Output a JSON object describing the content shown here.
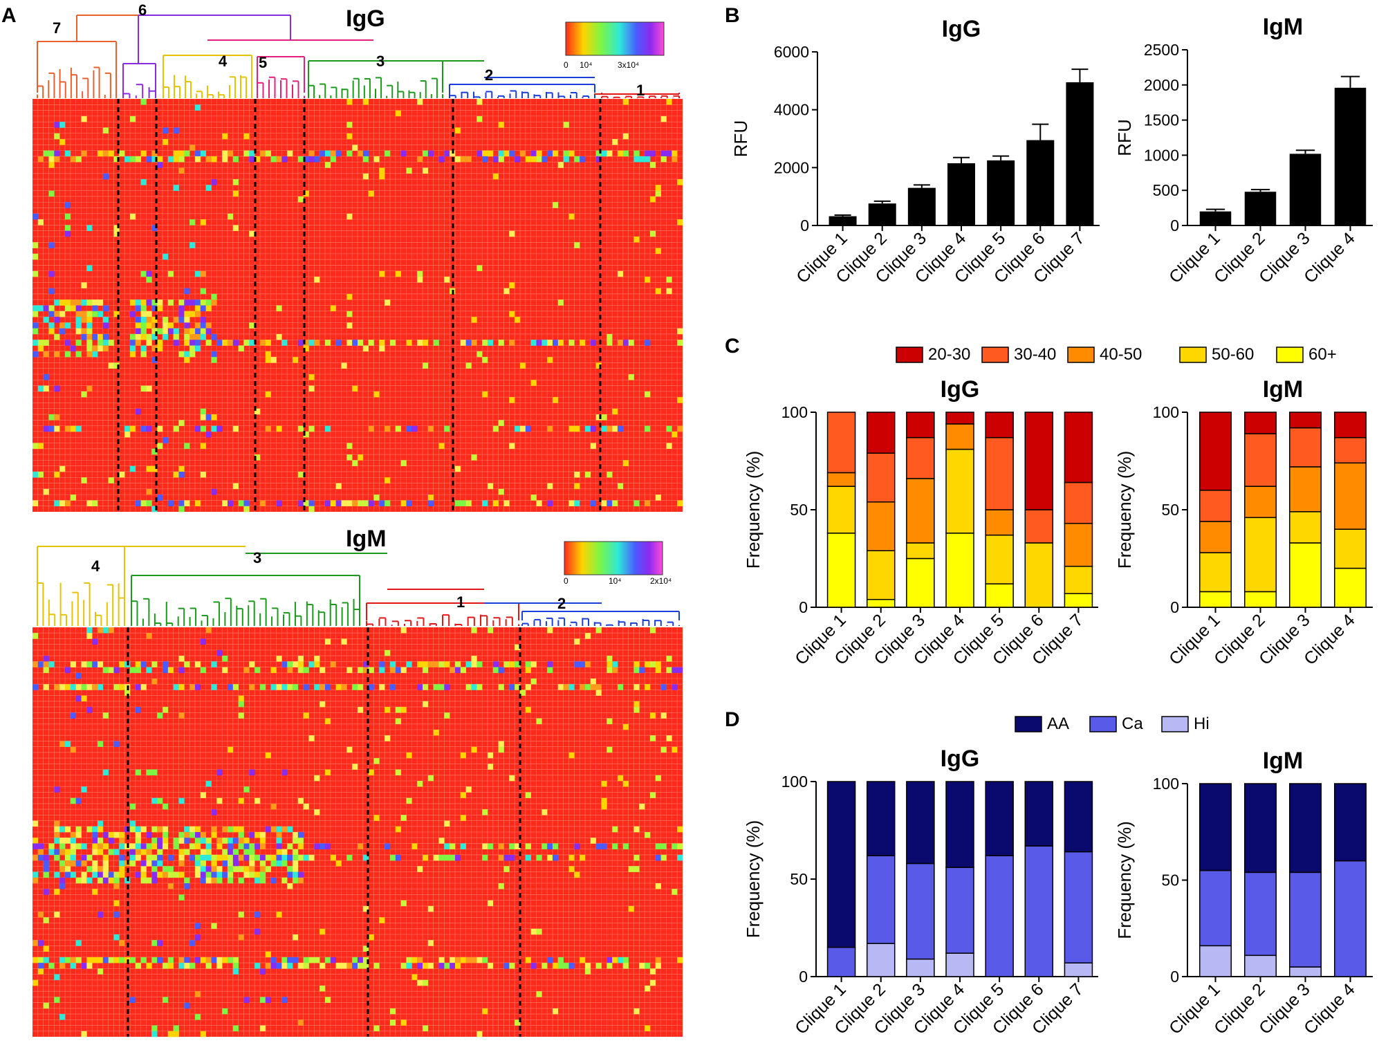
{
  "figure": {
    "panel_labels": {
      "a": "A",
      "b": "B",
      "c": "C",
      "d": "D"
    }
  },
  "heatmap_labels": {
    "igg": {
      "title": "IgG",
      "colorbar_ticks": [
        "0",
        "10⁴",
        "3x10⁴"
      ],
      "cluster_labels": [
        {
          "text": "7",
          "color": "#e8602c"
        },
        {
          "text": "6",
          "color": "#8a2be2"
        },
        {
          "text": "4",
          "color": "#e6c200"
        },
        {
          "text": "5",
          "color": "#e0207a"
        },
        {
          "text": "3",
          "color": "#1a9a1a"
        },
        {
          "text": "2",
          "color": "#1a3ed8"
        },
        {
          "text": "1",
          "color": "#e01818"
        }
      ]
    },
    "igm": {
      "title": "IgM",
      "colorbar_ticks": [
        "0",
        "10⁴",
        "2x10⁴"
      ],
      "cluster_labels": [
        {
          "text": "4",
          "color": "#e6c200"
        },
        {
          "text": "3",
          "color": "#1a9a1a"
        },
        {
          "text": "1",
          "color": "#e01818"
        },
        {
          "text": "2",
          "color": "#1a3ed8"
        }
      ]
    }
  },
  "chart_data": [
    {
      "id": "heatmap_igg",
      "type": "heatmap",
      "title": "IgG",
      "colorbar_range": [
        0,
        30000
      ],
      "column_clusters": [
        {
          "label": "7",
          "n_columns": 15
        },
        {
          "label": "6",
          "n_columns": 6
        },
        {
          "label": "4",
          "n_columns": 17
        },
        {
          "label": "5",
          "n_columns": 9
        },
        {
          "label": "3",
          "n_columns": 25
        },
        {
          "label": "2",
          "n_columns": 25
        },
        {
          "label": "1",
          "n_columns": 14
        }
      ],
      "n_rows": 72,
      "note": "Cell values are not individually legible; rendered as an approximate texture."
    },
    {
      "id": "heatmap_igm",
      "type": "heatmap",
      "title": "IgM",
      "colorbar_range": [
        0,
        20000
      ],
      "column_clusters": [
        {
          "label": "4",
          "n_columns": 16
        },
        {
          "label": "3",
          "n_columns": 40
        },
        {
          "label": "1",
          "n_columns": 25
        },
        {
          "label": "2",
          "n_columns": 27
        }
      ],
      "n_rows": 72,
      "note": "Cell values are not individually legible; rendered as an approximate texture."
    },
    {
      "id": "b_igg",
      "type": "bar",
      "title": "IgG",
      "ylabel": "RFU",
      "ylim": [
        0,
        6000
      ],
      "yticks": [
        0,
        2000,
        4000,
        6000
      ],
      "categories": [
        "Clique 1",
        "Clique 2",
        "Clique 3",
        "Clique 4",
        "Clique 5",
        "Clique 6",
        "Clique 7"
      ],
      "values": [
        320,
        760,
        1300,
        2150,
        2250,
        2950,
        4950
      ],
      "errors": [
        40,
        80,
        100,
        200,
        150,
        550,
        450
      ]
    },
    {
      "id": "b_igm",
      "type": "bar",
      "title": "IgM",
      "ylabel": "RFU",
      "ylim": [
        0,
        2500
      ],
      "yticks": [
        0,
        500,
        1000,
        1500,
        2000,
        2500
      ],
      "categories": [
        "Clique 1",
        "Clique 2",
        "Clique 3",
        "Clique 4"
      ],
      "values": [
        200,
        480,
        1020,
        1960
      ],
      "errors": [
        30,
        30,
        50,
        160
      ]
    },
    {
      "id": "c_igg",
      "type": "bar",
      "stacked": true,
      "title": "IgG",
      "ylabel": "Frequency (%)",
      "ylim": [
        0,
        100
      ],
      "yticks": [
        0,
        50,
        100
      ],
      "categories": [
        "Clique 1",
        "Clique 2",
        "Clique 3",
        "Clique 4",
        "Clique 5",
        "Clique 6",
        "Clique 7"
      ],
      "series": [
        {
          "name": "60+",
          "color": "#ffff00",
          "values": [
            38,
            4,
            25,
            38,
            12,
            0,
            7
          ]
        },
        {
          "name": "50-60",
          "color": "#ffd700",
          "values": [
            24,
            25,
            8,
            43,
            25,
            33,
            14
          ]
        },
        {
          "name": "40-50",
          "color": "#ff8c00",
          "values": [
            7,
            25,
            33,
            13,
            13,
            0,
            22
          ]
        },
        {
          "name": "30-40",
          "color": "#ff5a1f",
          "values": [
            31,
            25,
            21,
            0,
            37,
            17,
            21
          ]
        },
        {
          "name": "20-30",
          "color": "#cc0000",
          "values": [
            0,
            21,
            13,
            6,
            13,
            50,
            36
          ]
        }
      ]
    },
    {
      "id": "c_igm",
      "type": "bar",
      "stacked": true,
      "title": "IgM",
      "ylabel": "Frequency (%)",
      "ylim": [
        0,
        100
      ],
      "yticks": [
        0,
        50,
        100
      ],
      "categories": [
        "Clique 1",
        "Clique 2",
        "Clique 3",
        "Clique 4"
      ],
      "series": [
        {
          "name": "60+",
          "color": "#ffff00",
          "values": [
            8,
            8,
            33,
            20
          ]
        },
        {
          "name": "50-60",
          "color": "#ffd700",
          "values": [
            20,
            38,
            16,
            20
          ]
        },
        {
          "name": "40-50",
          "color": "#ff8c00",
          "values": [
            16,
            16,
            23,
            34
          ]
        },
        {
          "name": "30-40",
          "color": "#ff5a1f",
          "values": [
            16,
            27,
            20,
            13
          ]
        },
        {
          "name": "20-30",
          "color": "#cc0000",
          "values": [
            40,
            11,
            8,
            13
          ]
        }
      ]
    },
    {
      "id": "d_igg",
      "type": "bar",
      "stacked": true,
      "title": "IgG",
      "ylabel": "Frequency (%)",
      "ylim": [
        0,
        100
      ],
      "yticks": [
        0,
        50,
        100
      ],
      "categories": [
        "Clique 1",
        "Clique 2",
        "Clique 3",
        "Clique 4",
        "Clique 5",
        "Clique 6",
        "Clique 7"
      ],
      "series": [
        {
          "name": "Hi",
          "color": "#b8b8f5",
          "values": [
            0,
            17,
            9,
            12,
            0,
            0,
            7
          ]
        },
        {
          "name": "Ca",
          "color": "#5a5ae8",
          "values": [
            15,
            45,
            49,
            44,
            62,
            67,
            57
          ]
        },
        {
          "name": "AA",
          "color": "#0a0a6e",
          "values": [
            85,
            38,
            42,
            44,
            38,
            33,
            36
          ]
        }
      ]
    },
    {
      "id": "d_igm",
      "type": "bar",
      "stacked": true,
      "title": "IgM",
      "ylabel": "Frequency (%)",
      "ylim": [
        0,
        100
      ],
      "yticks": [
        0,
        50,
        100
      ],
      "categories": [
        "Clique 1",
        "Clique 2",
        "Clique 3",
        "Clique 4"
      ],
      "series": [
        {
          "name": "Hi",
          "color": "#b8b8f5",
          "values": [
            16,
            11,
            5,
            0
          ]
        },
        {
          "name": "Ca",
          "color": "#5a5ae8",
          "values": [
            39,
            43,
            49,
            60
          ]
        },
        {
          "name": "AA",
          "color": "#0a0a6e",
          "values": [
            45,
            46,
            46,
            40
          ]
        }
      ]
    }
  ]
}
